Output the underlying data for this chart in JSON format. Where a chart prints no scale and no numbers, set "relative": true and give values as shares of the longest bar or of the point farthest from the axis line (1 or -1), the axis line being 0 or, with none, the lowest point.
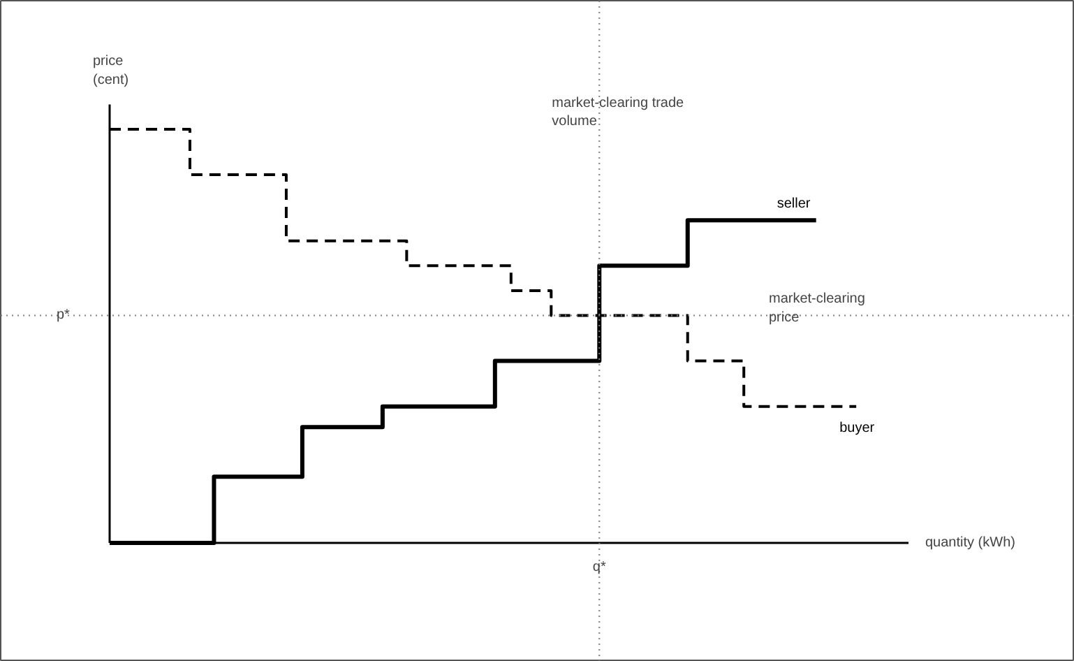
{
  "chart_data": {
    "type": "step",
    "relative": true,
    "xlabel": "quantity (kWh)",
    "ylabel": "price (cent)",
    "categories": [
      null,
      null,
      null,
      null,
      null,
      null,
      null,
      null,
      null,
      null,
      null,
      null,
      null,
      null,
      null,
      null,
      null,
      null,
      null,
      null,
      null,
      null,
      null,
      null,
      null,
      null,
      null,
      null,
      null,
      null,
      null,
      null,
      null,
      null,
      null,
      null,
      null,
      null,
      null,
      null,
      null,
      null,
      null,
      null,
      null,
      null,
      null,
      null,
      null,
      null,
      null,
      null,
      null,
      null,
      null,
      null,
      null,
      null,
      null,
      null,
      null,
      null,
      null,
      null,
      null,
      null,
      null,
      null,
      null,
      null,
      null,
      null,
      null,
      null,
      null,
      null,
      null,
      null,
      null,
      null,
      null,
      null,
      null,
      null,
      null,
      null,
      null,
      null,
      null,
      null,
      null,
      null,
      null,
      null
    ],
    "legend": false,
    "series": [
      {
        "name": "seller",
        "color": "#000000",
        "line_style": "solid",
        "values": [
          0,
          0,
          0,
          0,
          0,
          0,
          0,
          0,
          0,
          0,
          0,
          0,
          0,
          0.16,
          0.16,
          0.16,
          0.16,
          0.16,
          0.16,
          0.16,
          0.16,
          0.16,
          0.16,
          0.16,
          0.28,
          0.28,
          0.28,
          0.28,
          0.28,
          0.28,
          0.28,
          0.28,
          0.28,
          0.28,
          0.33,
          0.33,
          0.33,
          0.33,
          0.33,
          0.33,
          0.33,
          0.33,
          0.33,
          0.33,
          0.33,
          0.33,
          0.33,
          0.33,
          0.44,
          0.44,
          0.44,
          0.44,
          0.44,
          0.44,
          0.44,
          0.44,
          0.44,
          0.44,
          0.44,
          0.44,
          0.44,
          0.67,
          0.67,
          0.67,
          0.67,
          0.67,
          0.67,
          0.67,
          0.67,
          0.67,
          0.67,
          0.67,
          0.78,
          0.78,
          0.78,
          0.78,
          0.78,
          0.78,
          0.78,
          0.78,
          0.78,
          0.78,
          0.78,
          0.78,
          0.78,
          0.78,
          0.78,
          0.78,
          0.78,
          null,
          null,
          null,
          null,
          null
        ]
      },
      {
        "name": "buyer",
        "color": "#000000",
        "line_style": "dashed",
        "values": [
          1,
          1,
          1,
          1,
          1,
          1,
          1,
          1,
          1,
          1,
          0.89,
          0.89,
          0.89,
          0.89,
          0.89,
          0.89,
          0.89,
          0.89,
          0.89,
          0.89,
          0.89,
          0.89,
          0.73,
          0.73,
          0.73,
          0.73,
          0.73,
          0.73,
          0.73,
          0.73,
          0.73,
          0.73,
          0.73,
          0.73,
          0.73,
          0.73,
          0.73,
          0.67,
          0.67,
          0.67,
          0.67,
          0.67,
          0.67,
          0.67,
          0.67,
          0.67,
          0.67,
          0.67,
          0.67,
          0.67,
          0.61,
          0.61,
          0.61,
          0.61,
          0.61,
          0.55,
          0.55,
          0.55,
          0.55,
          0.55,
          0.55,
          0.55,
          0.55,
          0.55,
          0.55,
          0.55,
          0.55,
          0.55,
          0.55,
          0.55,
          0.55,
          0.55,
          0.44,
          0.44,
          0.44,
          0.44,
          0.44,
          0.44,
          0.44,
          0.33,
          0.33,
          0.33,
          0.33,
          0.33,
          0.33,
          0.33,
          0.33,
          0.33,
          0.33,
          0.33,
          0.33,
          0.33,
          0.33,
          0.33
        ]
      }
    ],
    "ref_lines": [
      {
        "axis": "y",
        "value": 0.55,
        "label": "p*",
        "color": "#808080",
        "line_style": "dotted"
      }
    ],
    "annotations": [
      "market-clearing trade volume",
      "q*",
      "market-clearing price"
    ]
  }
}
